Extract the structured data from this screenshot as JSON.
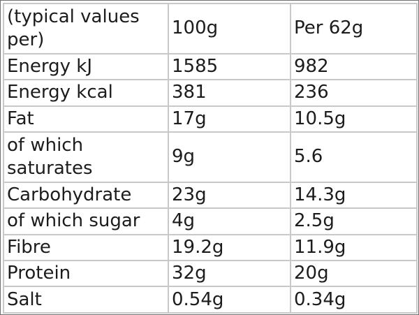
{
  "table": {
    "header": [
      "(typical values per)",
      "100g",
      "Per 62g"
    ],
    "rows": [
      [
        "Energy kJ",
        "1585",
        "982"
      ],
      [
        "Energy kcal",
        "381",
        "236"
      ],
      [
        "Fat",
        "17g",
        "10.5g"
      ],
      [
        "of which saturates",
        "9g",
        "5.6"
      ],
      [
        "Carbohydrate",
        "23g",
        "14.3g"
      ],
      [
        "of which sugar",
        "4g",
        "2.5g"
      ],
      [
        "Fibre",
        "19.2g",
        "11.9g"
      ],
      [
        "Protein",
        "32g",
        "20g"
      ],
      [
        "Salt",
        "0.54g",
        "0.34g"
      ]
    ]
  }
}
